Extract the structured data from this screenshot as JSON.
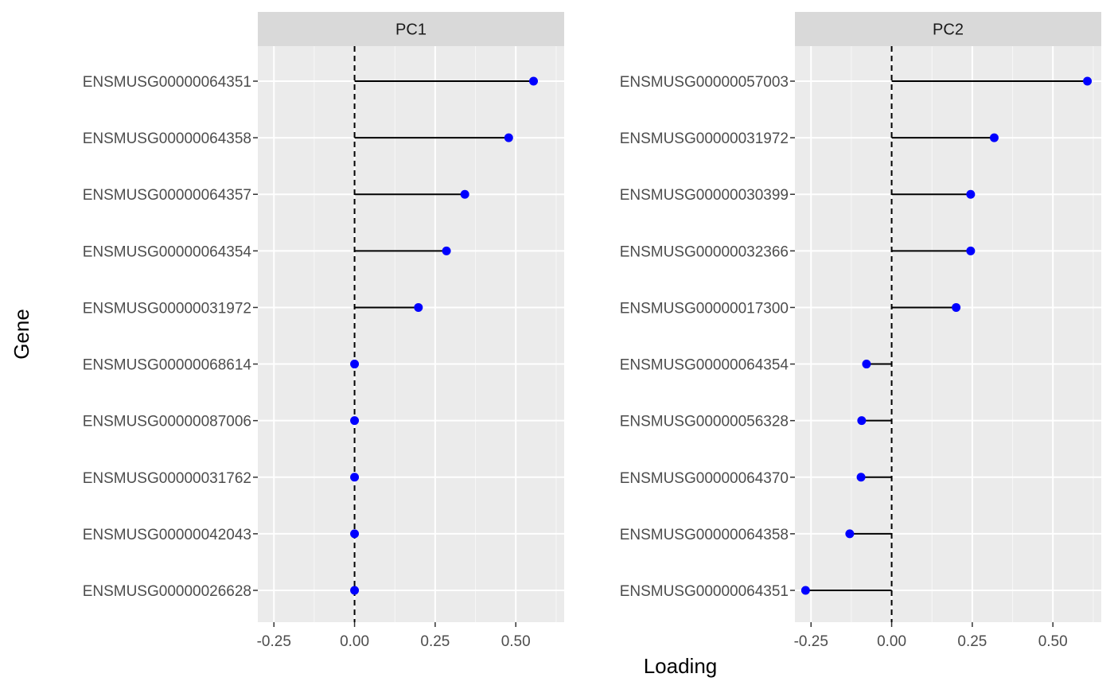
{
  "chart_data": {
    "type": "lollipop",
    "xlabel": "Loading",
    "ylabel": "Gene",
    "xlim": [
      -0.3,
      0.65
    ],
    "x_ticks": [
      -0.25,
      0.0,
      0.25,
      0.5
    ],
    "x_tick_labels": [
      "-0.25",
      "0.00",
      "0.25",
      "0.50"
    ],
    "grid": true,
    "colors": {
      "point": "#0000ff",
      "stem": "#000000",
      "panel_bg": "#ebebeb",
      "strip_bg": "#d9d9d9",
      "grid": "#ffffff",
      "zero_line": "#000000"
    },
    "panels": [
      {
        "title": "PC1",
        "genes": [
          "ENSMUSG00000064351",
          "ENSMUSG00000064358",
          "ENSMUSG00000064357",
          "ENSMUSG00000064354",
          "ENSMUSG00000031972",
          "ENSMUSG00000068614",
          "ENSMUSG00000087006",
          "ENSMUSG00000031762",
          "ENSMUSG00000042043",
          "ENSMUSG00000026628"
        ],
        "values": [
          0.555,
          0.478,
          0.342,
          0.285,
          0.198,
          0.0,
          0.0,
          0.0,
          0.0,
          0.0
        ]
      },
      {
        "title": "PC2",
        "genes": [
          "ENSMUSG00000057003",
          "ENSMUSG00000031972",
          "ENSMUSG00000030399",
          "ENSMUSG00000032366",
          "ENSMUSG00000017300",
          "ENSMUSG00000064354",
          "ENSMUSG00000056328",
          "ENSMUSG00000064370",
          "ENSMUSG00000064358",
          "ENSMUSG00000064351"
        ],
        "values": [
          0.607,
          0.318,
          0.245,
          0.245,
          0.2,
          -0.078,
          -0.093,
          -0.095,
          -0.13,
          -0.267
        ]
      }
    ]
  }
}
